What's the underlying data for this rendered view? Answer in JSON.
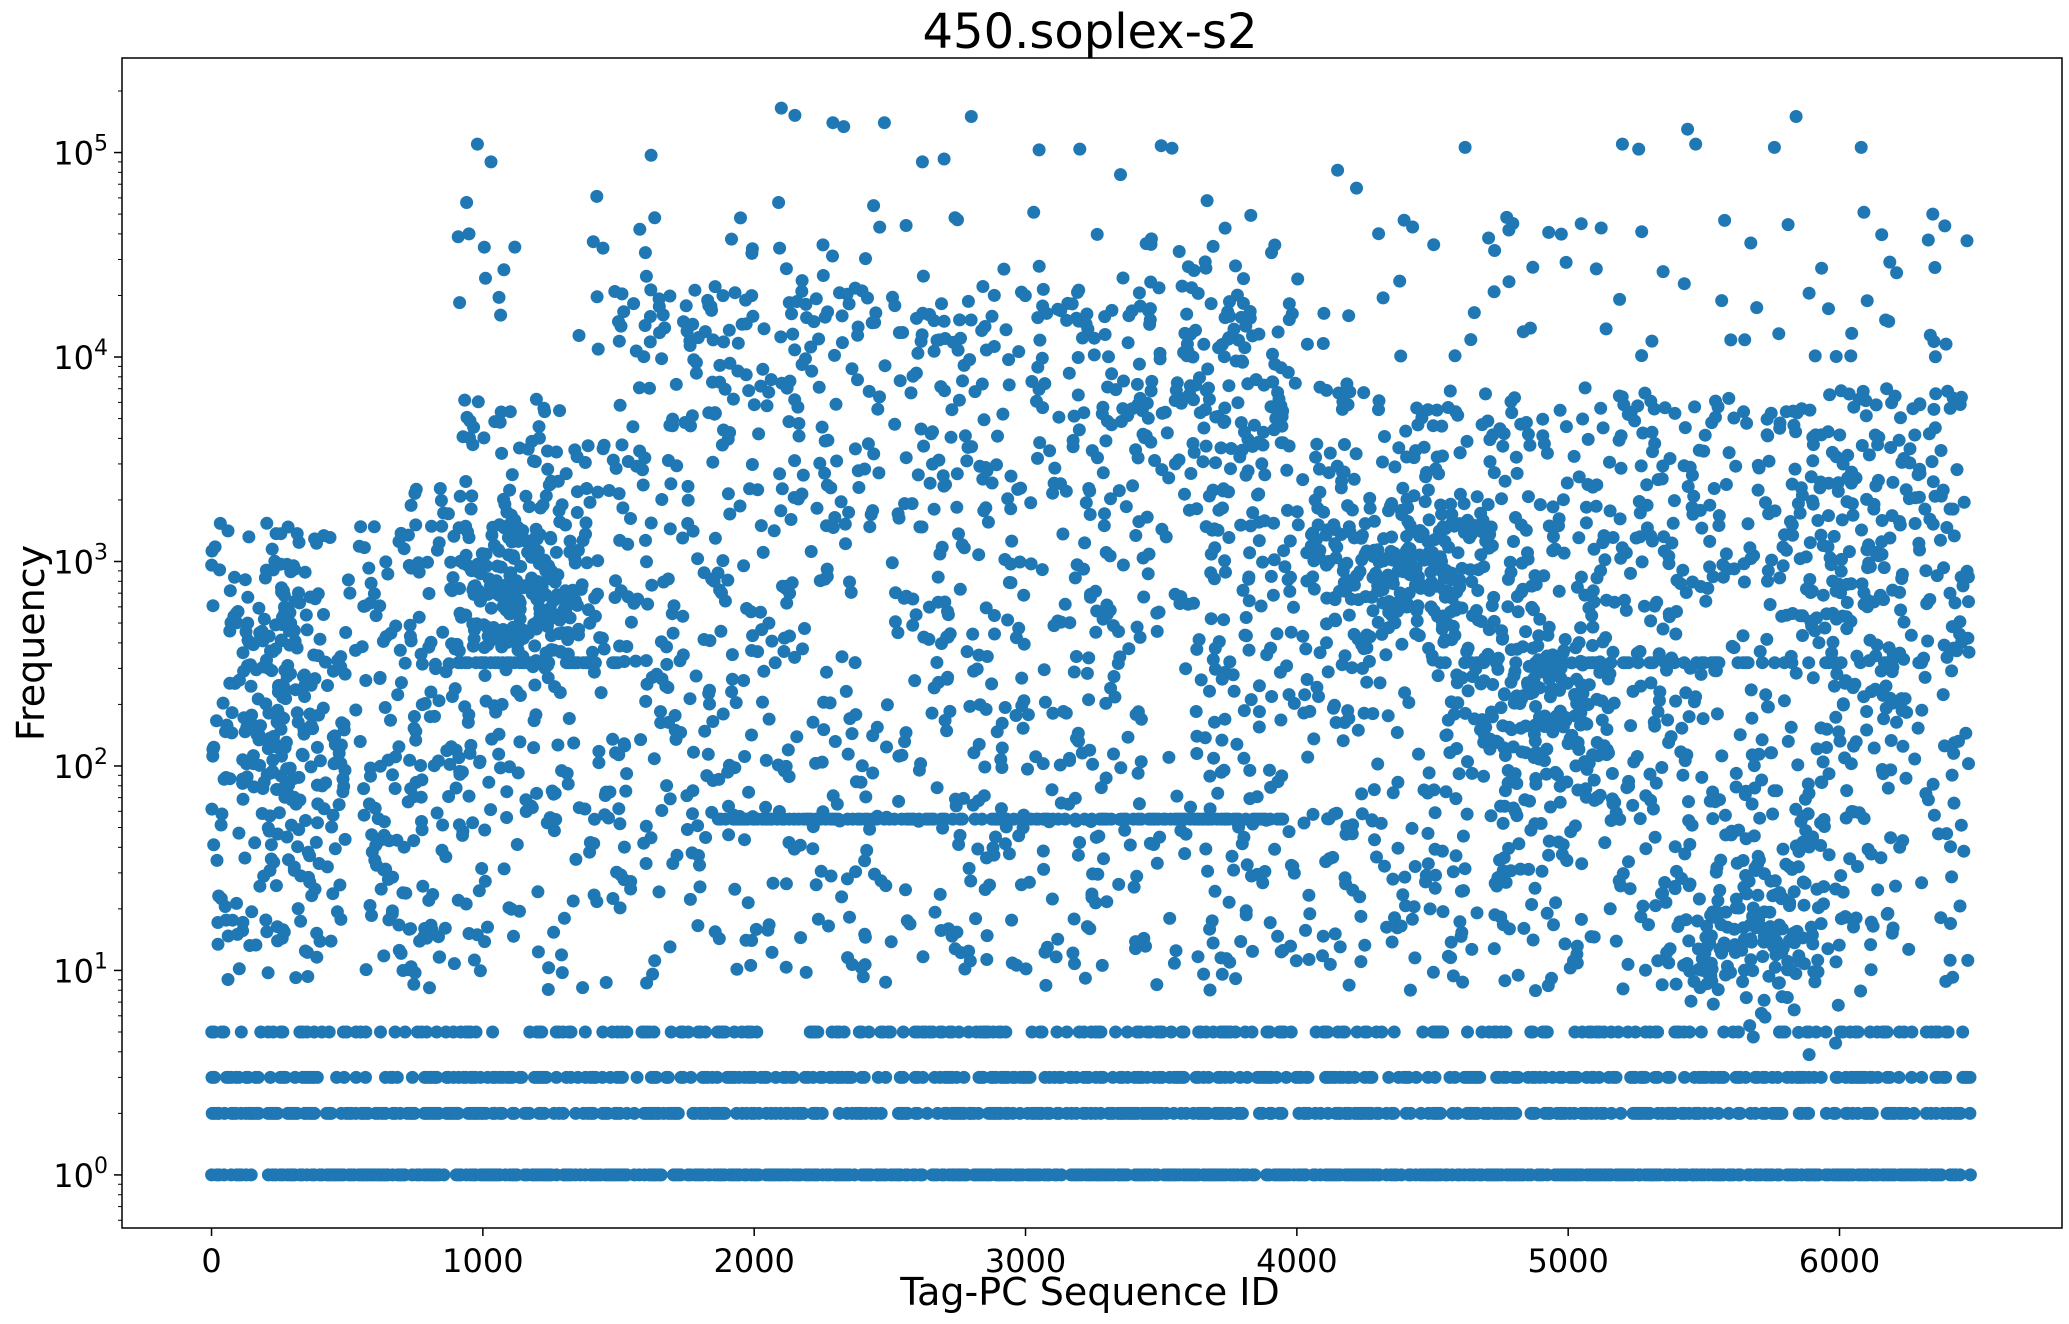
{
  "chart_data": {
    "type": "scatter",
    "title": "450.soplex-s2",
    "xlabel": "Tag-PC Sequence ID",
    "ylabel": "Frequency",
    "xlim": [
      -330,
      6820
    ],
    "ylim": [
      0.55,
      290000
    ],
    "yscale": "log",
    "xticks": [
      0,
      1000,
      2000,
      3000,
      4000,
      5000,
      6000
    ],
    "xtick_labels": [
      "0",
      "1000",
      "2000",
      "3000",
      "4000",
      "5000",
      "6000"
    ],
    "yticks": [
      1,
      10,
      100,
      1000,
      10000,
      100000
    ],
    "ytick_labels": [
      {
        "base": "10",
        "exp": "0"
      },
      {
        "base": "10",
        "exp": "1"
      },
      {
        "base": "10",
        "exp": "2"
      },
      {
        "base": "10",
        "exp": "3"
      },
      {
        "base": "10",
        "exp": "4"
      },
      {
        "base": "10",
        "exp": "5"
      }
    ],
    "grid": false,
    "marker_color": "#1f77b4",
    "x_range": [
      0,
      6480
    ],
    "outliers": [
      [
        980,
        110000
      ],
      [
        1030,
        90000
      ],
      [
        940,
        57000
      ],
      [
        1420,
        61000
      ],
      [
        1620,
        97000
      ],
      [
        2100,
        165000
      ],
      [
        2150,
        152000
      ],
      [
        2290,
        140000
      ],
      [
        2330,
        134000
      ],
      [
        2480,
        140000
      ],
      [
        2620,
        90000
      ],
      [
        2700,
        93000
      ],
      [
        2800,
        150000
      ],
      [
        3050,
        103000
      ],
      [
        3200,
        104000
      ],
      [
        3500,
        108000
      ],
      [
        3540,
        105000
      ],
      [
        3350,
        78000
      ],
      [
        4150,
        82000
      ],
      [
        4220,
        67000
      ],
      [
        4620,
        106000
      ],
      [
        5200,
        110000
      ],
      [
        5260,
        104000
      ],
      [
        5440,
        130000
      ],
      [
        5470,
        110000
      ],
      [
        5760,
        106000
      ],
      [
        5840,
        150000
      ],
      [
        6080,
        106000
      ],
      [
        6090,
        51000
      ],
      [
        6470,
        37000
      ],
      [
        2560,
        44000
      ],
      [
        2090,
        57000
      ],
      [
        2440,
        55000
      ],
      [
        2740,
        48000
      ],
      [
        3030,
        51000
      ]
    ],
    "bands": [
      {
        "y": 1,
        "density": 0.75
      },
      {
        "y": 2,
        "density": 0.55
      },
      {
        "y": 3,
        "density": 0.45
      },
      {
        "y": 5,
        "density": 0.35
      },
      {
        "y": 55,
        "x_from": 1840,
        "x_to": 3950,
        "density": 0.6
      },
      {
        "y": 320,
        "x_from": 900,
        "x_to": 1500,
        "density": 0.5
      },
      {
        "y": 320,
        "x_from": 4500,
        "x_to": 6300,
        "density": 0.3
      }
    ],
    "clusters": [
      {
        "x": 1150,
        "y": 700,
        "sx": 120,
        "sy": 0.18,
        "n": 160
      },
      {
        "x": 4400,
        "y": 850,
        "sx": 200,
        "sy": 0.18,
        "n": 200
      },
      {
        "x": 4900,
        "y": 180,
        "sx": 170,
        "sy": 0.25,
        "n": 150
      },
      {
        "x": 5700,
        "y": 15,
        "sx": 170,
        "sy": 0.22,
        "n": 150
      },
      {
        "x": 220,
        "y": 150,
        "sx": 60,
        "sy": 0.35,
        "n": 70
      },
      {
        "x": 6050,
        "y": 1000,
        "sx": 160,
        "sy": 0.45,
        "n": 80
      },
      {
        "x": 3700,
        "y": 6000,
        "sx": 200,
        "sy": 0.35,
        "n": 80
      }
    ]
  }
}
